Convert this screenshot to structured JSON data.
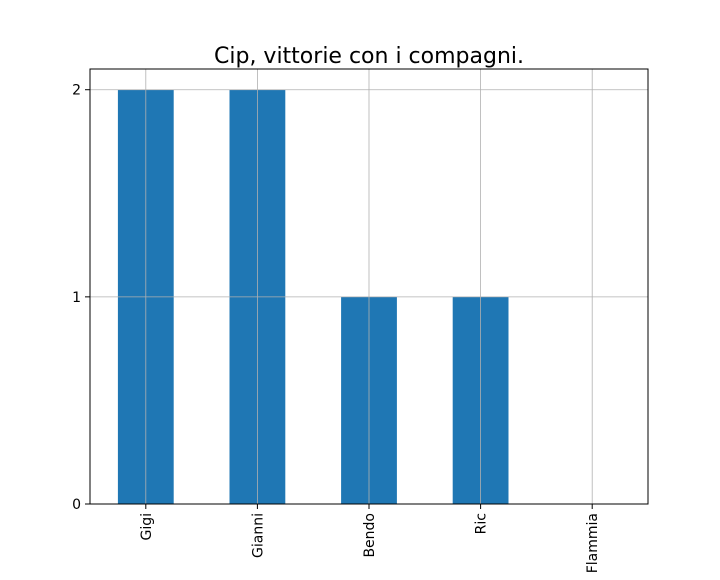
{
  "chart_data": {
    "type": "bar",
    "title": "Cip, vittorie con i compagni.",
    "xlabel": "",
    "ylabel": "",
    "categories": [
      "Gigi",
      "Gianni",
      "Bendo",
      "Ric",
      "Flammia"
    ],
    "values": [
      2,
      2,
      1,
      1,
      0
    ],
    "ylim": [
      0,
      2.1
    ],
    "yticks": [
      "0",
      "1",
      "2"
    ],
    "grid": true,
    "legend": "none",
    "colors": {
      "bar": "#1f77b4",
      "grid": "#b0b0b0",
      "axis": "#000000"
    }
  }
}
